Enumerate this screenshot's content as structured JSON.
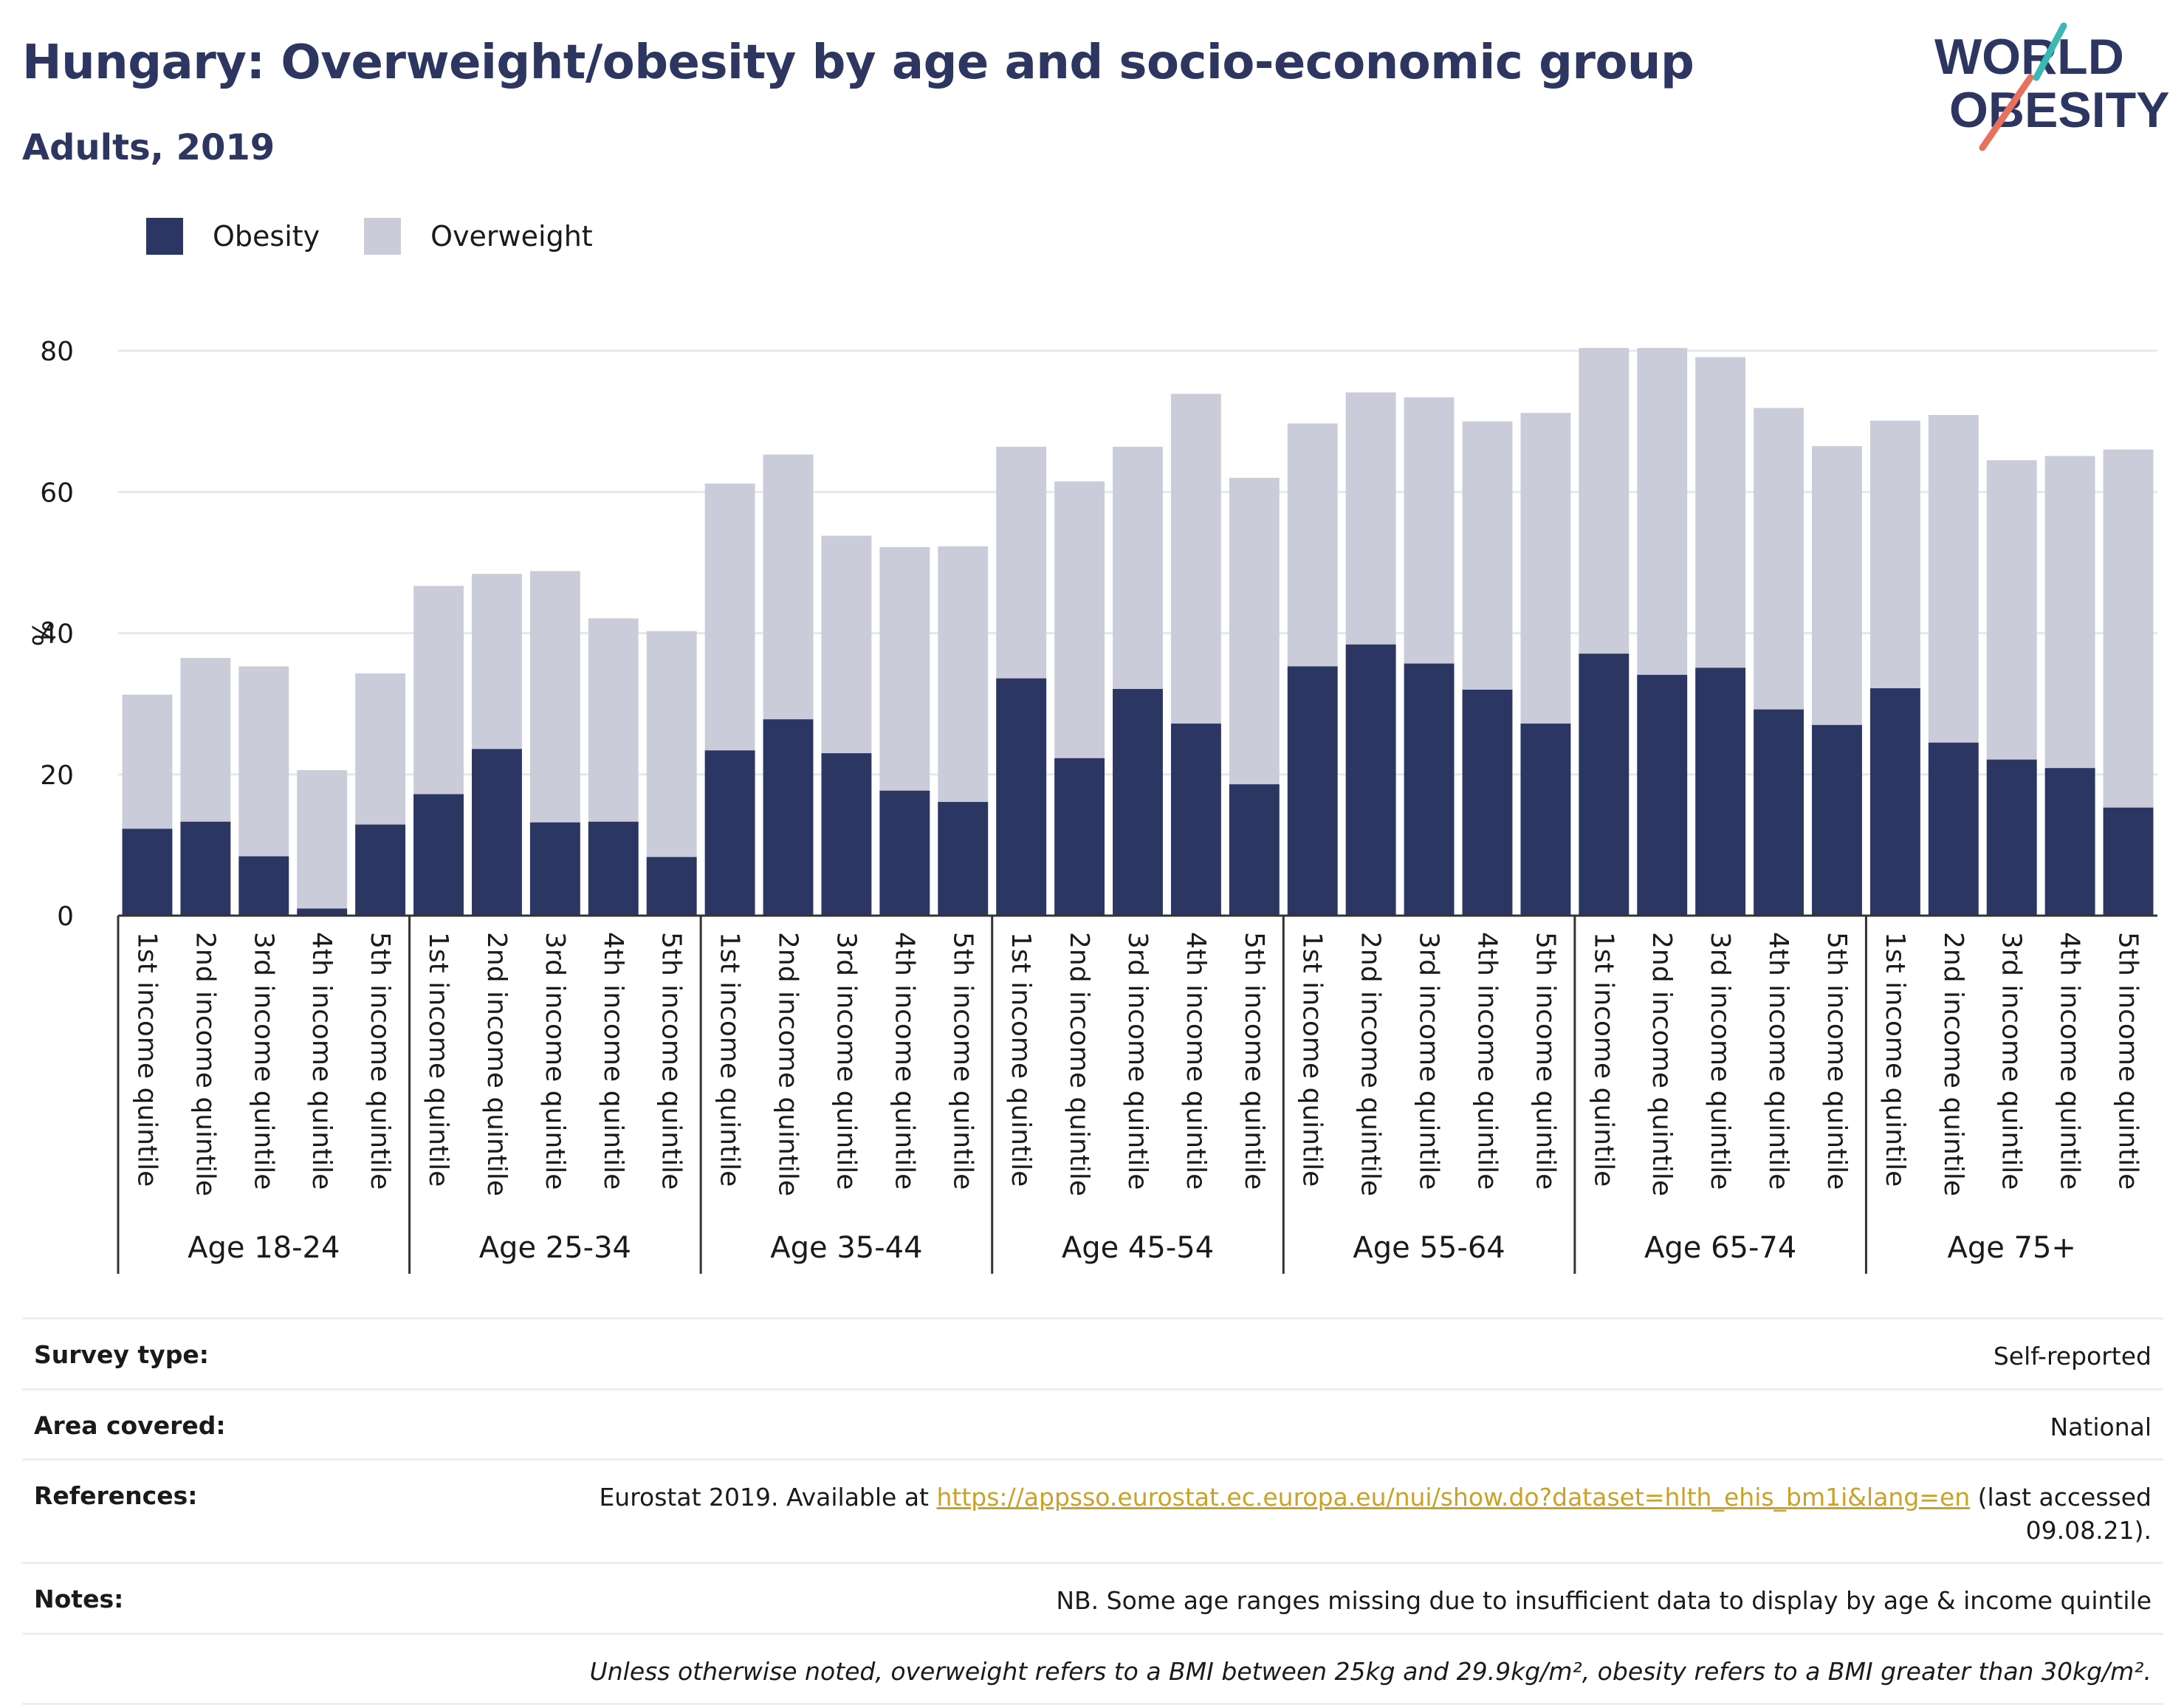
{
  "header": {
    "title": "Hungary: Overweight/obesity by age and socio-economic group",
    "subtitle": "Adults, 2019",
    "logo_line1": "WORLD",
    "logo_line2": "OBESITY"
  },
  "legend": [
    {
      "label": "Obesity",
      "color": "#2c3663"
    },
    {
      "label": "Overweight",
      "color": "#cacdd9"
    }
  ],
  "chart_data": {
    "type": "bar",
    "stacked": false,
    "overlapping": true,
    "ylabel": "%",
    "ylim": [
      0,
      80
    ],
    "yticks": [
      0,
      20,
      40,
      60,
      80
    ],
    "grid": true,
    "legend_position": "top-left",
    "subcategories": [
      "1st income quintile",
      "2nd income quintile",
      "3rd income quintile",
      "4th income quintile",
      "5th income quintile"
    ],
    "groups": [
      "Age 18-24",
      "Age 25-34",
      "Age 35-44",
      "Age 45-54",
      "Age 55-64",
      "Age 65-74",
      "Age 75+"
    ],
    "series": [
      {
        "name": "Overweight",
        "color": "#cacdd9",
        "values": [
          31.3,
          36.5,
          35.3,
          20.6,
          34.3,
          46.7,
          48.4,
          48.8,
          42.1,
          40.3,
          61.2,
          65.3,
          53.8,
          52.2,
          52.3,
          66.4,
          61.5,
          66.4,
          73.9,
          62.0,
          69.7,
          74.1,
          73.4,
          70.0,
          71.2,
          80.4,
          80.4,
          79.1,
          71.9,
          66.5,
          70.1,
          70.9,
          64.5,
          65.1,
          66.0
        ]
      },
      {
        "name": "Obesity",
        "color": "#2c3663",
        "values": [
          12.3,
          13.3,
          8.4,
          1.0,
          12.9,
          17.2,
          23.6,
          13.2,
          13.3,
          8.3,
          23.4,
          27.8,
          23.0,
          17.7,
          16.1,
          33.6,
          22.3,
          32.1,
          27.2,
          18.6,
          35.3,
          38.4,
          35.7,
          32.0,
          27.2,
          37.1,
          34.1,
          35.1,
          29.2,
          27.0,
          32.2,
          24.5,
          22.1,
          20.9,
          15.3
        ]
      }
    ]
  },
  "meta": {
    "survey_label": "Survey type:",
    "survey_value": "Self-reported",
    "area_label": "Area covered:",
    "area_value": "National",
    "refs_label": "References:",
    "refs_prefix": "Eurostat 2019. Available at ",
    "refs_link": "https://appsso.eurostat.ec.europa.eu/nui/show.do?dataset=hlth_ehis_bm1i&lang=en",
    "refs_suffix": " (last accessed 09.08.21).",
    "notes_label": "Notes:",
    "notes_value": "NB. Some age ranges missing due to insufficient data to display by age & income quintile",
    "definition": "Unless otherwise noted, overweight refers to a BMI between 25kg and 29.9kg/m², obesity refers to a BMI greater than 30kg/m²."
  }
}
